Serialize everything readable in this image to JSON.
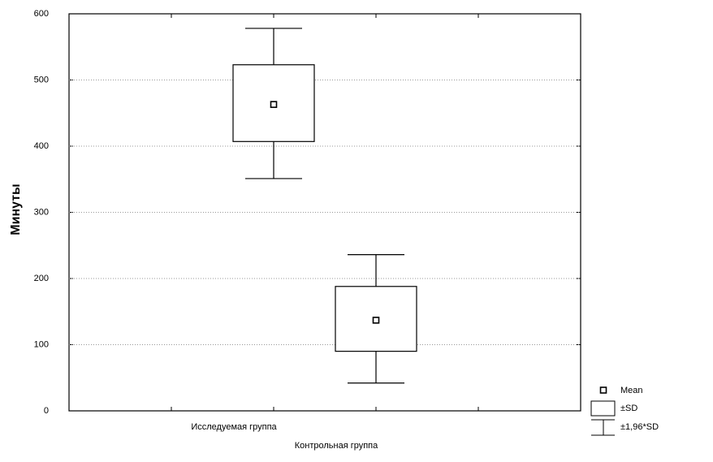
{
  "chart_data": {
    "type": "box",
    "y_label": "Минуты",
    "categories": [
      "Исследуемая группа",
      "Контрольная группа"
    ],
    "means": [
      463,
      137
    ],
    "sd_low": [
      407,
      90
    ],
    "sd_high": [
      523,
      188
    ],
    "ci_low": [
      351,
      42
    ],
    "ci_high": [
      578,
      236
    ],
    "ylim": [
      0,
      600
    ],
    "yticks": [
      0,
      100,
      200,
      300,
      400,
      500,
      600
    ],
    "grid": true,
    "legend": [
      "Mean",
      "±SD",
      "±1,96*SD"
    ],
    "color": "#000000"
  }
}
